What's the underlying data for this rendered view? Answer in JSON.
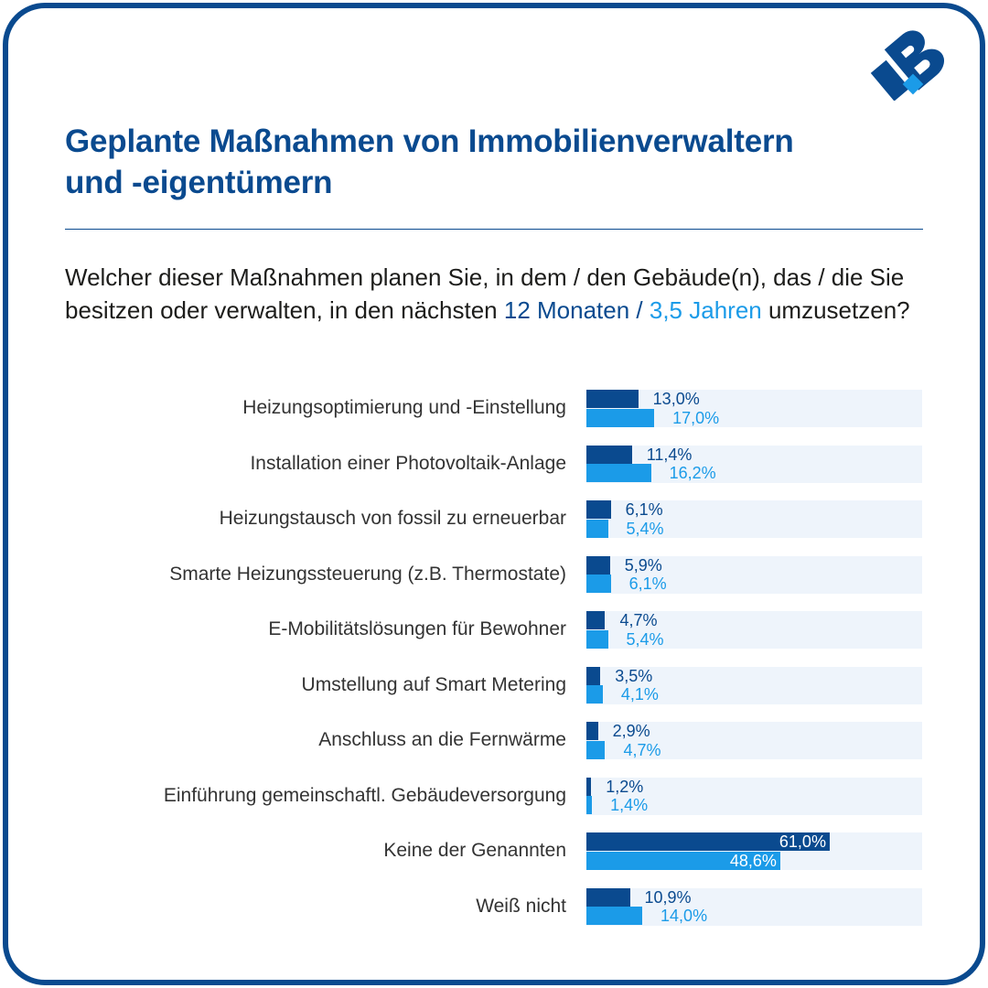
{
  "header": {
    "title": "Geplante Maßnahmen von Immobilienverwaltern und -eigentümern",
    "title_line1": "Geplante Maßnahmen von Immobilienverwaltern",
    "title_line2": "und -eigentümern",
    "logo": "company-logo-icon"
  },
  "question": {
    "part1": "Welcher dieser Maßnahmen planen Sie, in dem / den Gebäude(n), das / die Sie besitzen oder verwalten, in den nächsten ",
    "highlight_dark": "12 Monaten /",
    "space": " ",
    "highlight_light": "3,5 Jahren",
    "part2": " umzusetzen?"
  },
  "colors": {
    "dark_blue": "#0a4a8f",
    "light_blue": "#1b9be8",
    "track": "#eef4fb",
    "text": "#333333"
  },
  "chart_data": {
    "type": "bar",
    "orientation": "horizontal",
    "title": "Geplante Maßnahmen von Immobilienverwaltern und -eigentümern",
    "xlabel": "",
    "ylabel": "",
    "xlim": [
      0,
      84
    ],
    "unit": "%",
    "grid": false,
    "categories": [
      "Heizungsoptimierung und -Einstellung",
      "Installation einer Photovoltaik-Anlage",
      "Heizungstausch von fossil zu erneuerbar",
      "Smarte Heizungssteuerung (z.B. Thermostate)",
      "E-Mobilitätslösungen für Bewohner",
      "Umstellung auf Smart Metering",
      "Anschluss an die Fernwärme",
      "Einführung gemeinschaftl. Gebäudeversorgung",
      "Keine der Genannten",
      "Weiß nicht"
    ],
    "series": [
      {
        "name": "12 Monaten",
        "color": "#0a4a8f",
        "values": [
          13.0,
          11.4,
          6.1,
          5.9,
          4.7,
          3.5,
          2.9,
          1.2,
          61.0,
          10.9
        ],
        "labels": [
          "13,0%",
          "11,4%",
          "6,1%",
          "5,9%",
          "4,7%",
          "3,5%",
          "2,9%",
          "1,2%",
          "61,0%",
          "10,9%"
        ]
      },
      {
        "name": "3,5 Jahren",
        "color": "#1b9be8",
        "values": [
          17.0,
          16.2,
          5.4,
          6.1,
          5.4,
          4.1,
          4.7,
          1.4,
          48.6,
          14.0
        ],
        "labels": [
          "17,0%",
          "16,2%",
          "5,4%",
          "6,1%",
          "5,4%",
          "4,1%",
          "4,7%",
          "1,4%",
          "48,6%",
          "14,0%"
        ]
      }
    ]
  }
}
